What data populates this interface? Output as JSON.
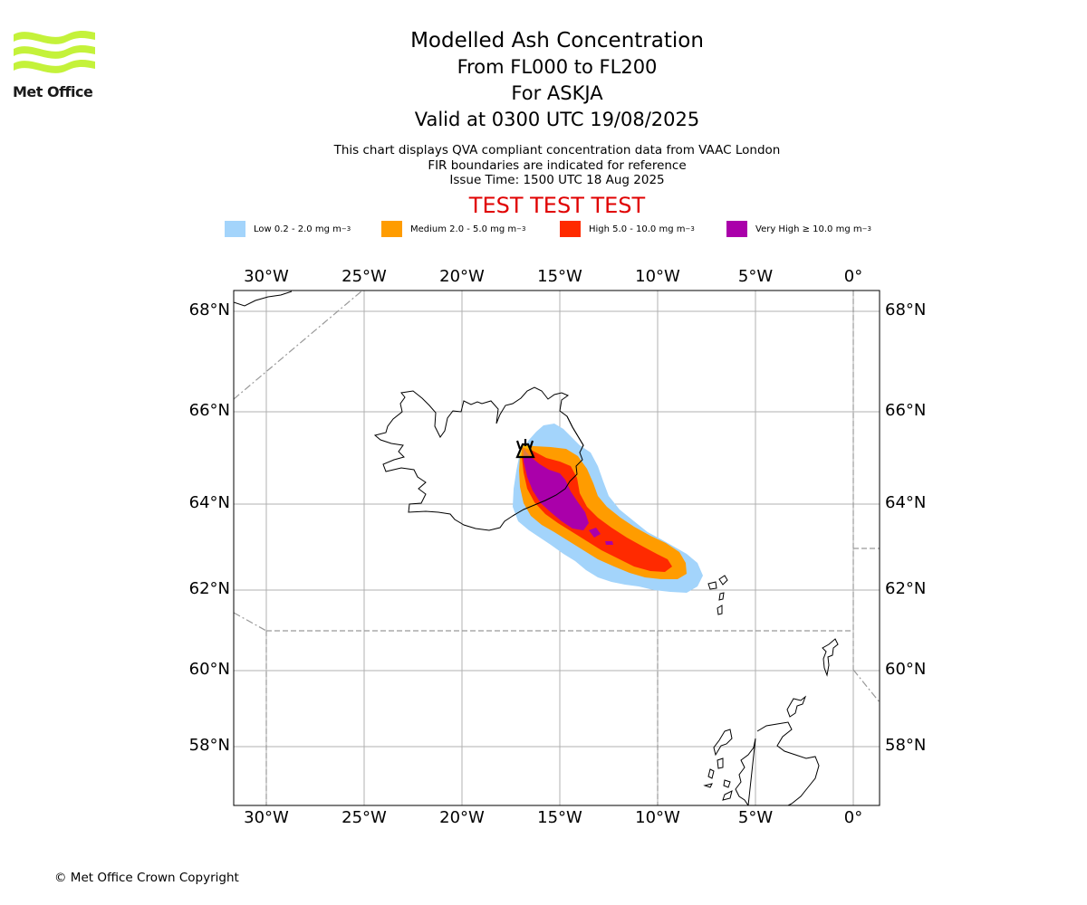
{
  "logo": {
    "text": "Met Office",
    "color": "#c4f23a"
  },
  "title": {
    "main": "Modelled Ash Concentration",
    "levels": "From FL000 to FL200",
    "volcano": "For ASKJA",
    "valid": "Valid at 0300 UTC 19/08/2025"
  },
  "info": {
    "line1": "This chart displays QVA compliant concentration data from VAAC London",
    "line2": "FIR boundaries are indicated for reference",
    "line3": "Issue Time: 1500 UTC 18 Aug 2025"
  },
  "test_label": "TEST TEST TEST",
  "legend": [
    {
      "label": "Low 0.2 - 2.0 mg m",
      "unit_exp": "−3",
      "color": "#a3d4fb"
    },
    {
      "label": "Medium 2.0 - 5.0 mg m",
      "unit_exp": "−3",
      "color": "#ff9c00"
    },
    {
      "label": "High 5.0 - 10.0 mg m",
      "unit_exp": "−3",
      "color": "#ff2a00"
    },
    {
      "label": "Very High ≥ 10.0 mg m",
      "unit_exp": "−3",
      "color": "#aa00aa"
    }
  ],
  "map": {
    "lon_ticks": [
      "30°W",
      "25°W",
      "20°W",
      "15°W",
      "10°W",
      "5°W",
      "0°"
    ],
    "lat_ticks": [
      "68°N",
      "66°N",
      "64°N",
      "62°N",
      "60°N",
      "58°N"
    ]
  },
  "copyright": "© Met Office Crown Copyright"
}
